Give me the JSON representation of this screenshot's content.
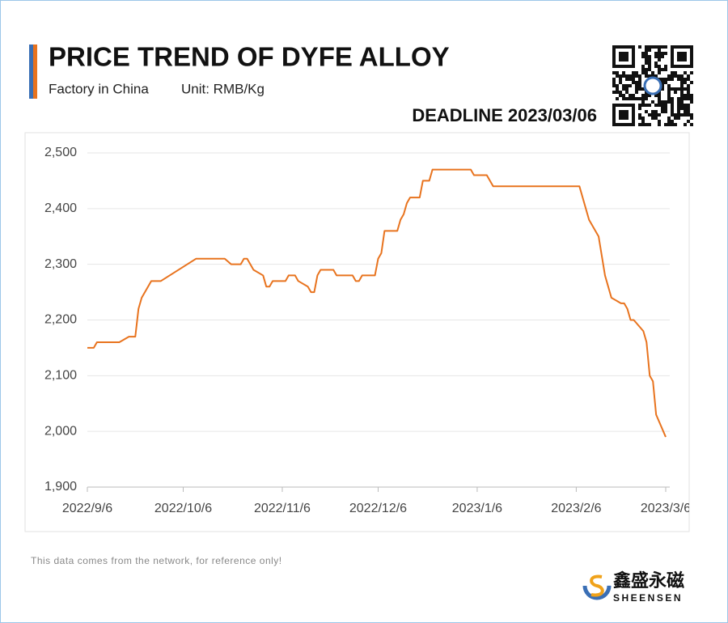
{
  "header": {
    "title": "PRICE TREND OF DYFE ALLOY",
    "subtitle": "Factory in China",
    "unit": "Unit: RMB/Kg",
    "deadline": "DEADLINE 2023/03/06"
  },
  "chart_data": {
    "type": "line",
    "x": [
      "2022/9/6",
      "2022/9/8",
      "2022/9/9",
      "2022/9/16",
      "2022/9/19",
      "2022/9/21",
      "2022/9/22",
      "2022/9/23",
      "2022/9/26",
      "2022/9/29",
      "2022/10/10",
      "2022/10/19",
      "2022/10/21",
      "2022/10/24",
      "2022/10/25",
      "2022/10/26",
      "2022/10/28",
      "2022/10/31",
      "2022/11/1",
      "2022/11/2",
      "2022/11/3",
      "2022/11/7",
      "2022/11/8",
      "2022/11/10",
      "2022/11/11",
      "2022/11/14",
      "2022/11/15",
      "2022/11/16",
      "2022/11/17",
      "2022/11/18",
      "2022/11/22",
      "2022/11/23",
      "2022/11/28",
      "2022/11/29",
      "2022/11/30",
      "2022/12/1",
      "2022/12/5",
      "2022/12/6",
      "2022/12/7",
      "2022/12/8",
      "2022/12/12",
      "2022/12/13",
      "2022/12/14",
      "2022/12/15",
      "2022/12/16",
      "2022/12/19",
      "2022/12/20",
      "2022/12/22",
      "2022/12/23",
      "2023/1/4",
      "2023/1/5",
      "2023/1/9",
      "2023/1/11",
      "2023/2/7",
      "2023/2/10",
      "2023/2/13",
      "2023/2/15",
      "2023/2/17",
      "2023/2/20",
      "2023/2/21",
      "2023/2/22",
      "2023/2/23",
      "2023/2/24",
      "2023/2/27",
      "2023/2/28",
      "2023/3/1",
      "2023/3/2",
      "2023/3/3",
      "2023/3/6"
    ],
    "series": [
      {
        "name": "DyFe Alloy",
        "color": "#e8731e",
        "values": [
          2150,
          2150,
          2160,
          2160,
          2170,
          2170,
          2220,
          2240,
          2270,
          2270,
          2310,
          2310,
          2300,
          2300,
          2310,
          2310,
          2290,
          2280,
          2260,
          2260,
          2270,
          2270,
          2280,
          2280,
          2270,
          2260,
          2250,
          2250,
          2280,
          2290,
          2290,
          2280,
          2280,
          2270,
          2270,
          2280,
          2280,
          2310,
          2320,
          2360,
          2360,
          2380,
          2390,
          2410,
          2420,
          2420,
          2450,
          2450,
          2470,
          2470,
          2460,
          2460,
          2440,
          2440,
          2380,
          2350,
          2280,
          2240,
          2230,
          2230,
          2220,
          2200,
          2200,
          2180,
          2160,
          2100,
          2090,
          2030,
          1990
        ]
      }
    ],
    "xlim": [
      "2022/9/6",
      "2023/3/6"
    ],
    "xticks": [
      "2022/9/6",
      "2022/10/6",
      "2022/11/6",
      "2022/12/6",
      "2023/1/6",
      "2023/2/6",
      "2023/3/6"
    ],
    "ylim": [
      1900,
      2500
    ],
    "yticks": [
      {
        "value": 1900,
        "label": "1,900"
      },
      {
        "value": 2000,
        "label": "2,000"
      },
      {
        "value": 2100,
        "label": "2,100"
      },
      {
        "value": 2200,
        "label": "2,200"
      },
      {
        "value": 2300,
        "label": "2,300"
      },
      {
        "value": 2400,
        "label": "2,400"
      },
      {
        "value": 2500,
        "label": "2,500"
      }
    ],
    "grid": true
  },
  "footer": {
    "note": "This data comes from the network, for reference only!",
    "brand": "鑫盛永磁",
    "brand_latin": "SHEENSEN"
  }
}
